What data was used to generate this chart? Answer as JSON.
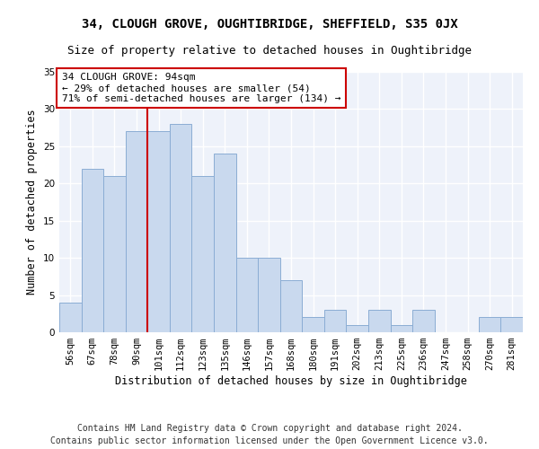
{
  "title": "34, CLOUGH GROVE, OUGHTIBRIDGE, SHEFFIELD, S35 0JX",
  "subtitle": "Size of property relative to detached houses in Oughtibridge",
  "xlabel": "Distribution of detached houses by size in Oughtibridge",
  "ylabel": "Number of detached properties",
  "footer_line1": "Contains HM Land Registry data © Crown copyright and database right 2024.",
  "footer_line2": "Contains public sector information licensed under the Open Government Licence v3.0.",
  "categories": [
    "56sqm",
    "67sqm",
    "78sqm",
    "90sqm",
    "101sqm",
    "112sqm",
    "123sqm",
    "135sqm",
    "146sqm",
    "157sqm",
    "168sqm",
    "180sqm",
    "191sqm",
    "202sqm",
    "213sqm",
    "225sqm",
    "236sqm",
    "247sqm",
    "258sqm",
    "270sqm",
    "281sqm"
  ],
  "values": [
    4,
    22,
    21,
    27,
    27,
    28,
    21,
    24,
    10,
    10,
    7,
    2,
    3,
    1,
    3,
    1,
    3,
    0,
    0,
    2,
    2
  ],
  "bar_color": "#c9d9ee",
  "bar_edgecolor": "#8badd4",
  "vline_x_idx": 3.5,
  "vline_color": "#cc0000",
  "annotation_line1": "34 CLOUGH GROVE: 94sqm",
  "annotation_line2": "← 29% of detached houses are smaller (54)",
  "annotation_line3": "71% of semi-detached houses are larger (134) →",
  "annotation_box_color": "white",
  "annotation_box_edgecolor": "#cc0000",
  "ylim": [
    0,
    35
  ],
  "yticks": [
    0,
    5,
    10,
    15,
    20,
    25,
    30,
    35
  ],
  "background_color": "#eef2fa",
  "grid_color": "white",
  "title_fontsize": 10,
  "subtitle_fontsize": 9,
  "xlabel_fontsize": 8.5,
  "ylabel_fontsize": 8.5,
  "tick_fontsize": 7.5,
  "annotation_fontsize": 8,
  "footer_fontsize": 7
}
